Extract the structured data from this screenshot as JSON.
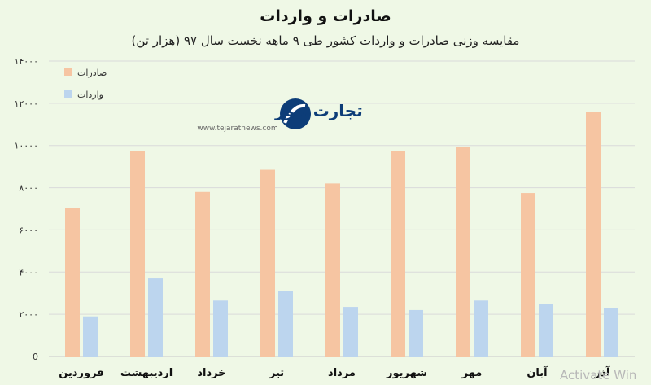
{
  "chart_data": {
    "type": "bar",
    "title": "صادرات و واردات",
    "subtitle": "مقایسه وزنی صادرات و واردات کشور طی ۹ ماهه نخست سال ۹۷ (هزار تن)",
    "categories": [
      "فروردین",
      "اردیبهشت",
      "خرداد",
      "تیر",
      "مرداد",
      "شهریور",
      "مهر",
      "آبان",
      "آذر"
    ],
    "series": [
      {
        "name": "صادرات",
        "color": "#f6c5a2",
        "values": [
          7050,
          9750,
          7800,
          8850,
          8200,
          9750,
          9950,
          7750,
          11600
        ]
      },
      {
        "name": "واردات",
        "color": "#bcd5ee",
        "values": [
          1900,
          3700,
          2650,
          3100,
          2350,
          2200,
          2650,
          2500,
          2300
        ]
      }
    ],
    "ylim": [
      0,
      14000
    ],
    "yticks": [
      {
        "value": 0,
        "label": "0"
      },
      {
        "value": 2000,
        "label": "۲۰۰۰"
      },
      {
        "value": 4000,
        "label": "۴۰۰۰"
      },
      {
        "value": 6000,
        "label": "۶۰۰۰"
      },
      {
        "value": 8000,
        "label": "۸۰۰۰"
      },
      {
        "value": 10000,
        "label": "۱۰۰۰۰"
      },
      {
        "value": 12000,
        "label": "۱۲۰۰۰"
      },
      {
        "value": 14000,
        "label": "۱۴۰۰۰"
      }
    ],
    "grid": true,
    "legend": "top-left"
  },
  "watermark": {
    "brand": "تجارت نیوز",
    "url": "www.tejaratnews.com",
    "icon": "tejaratnews-logo-icon"
  },
  "overlay": {
    "activate_text": "Activate Win"
  }
}
